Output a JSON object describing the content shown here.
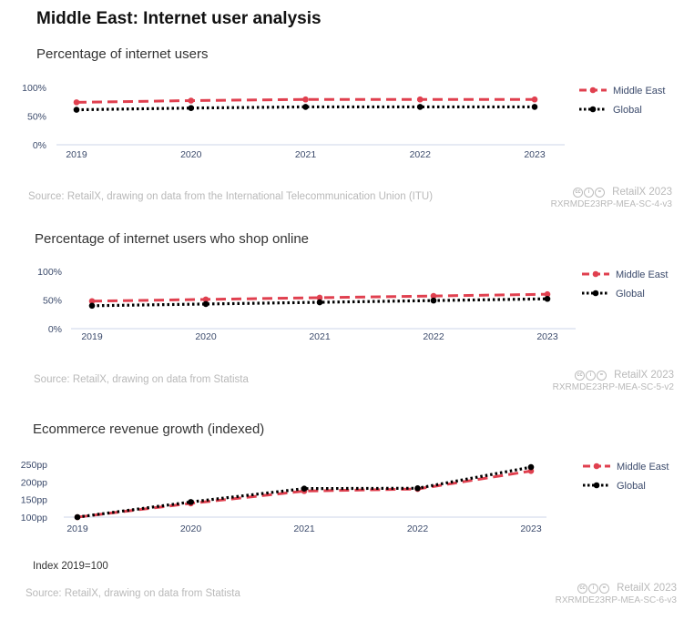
{
  "page": {
    "title": "Middle East: Internet user analysis"
  },
  "charts": [
    {
      "heading": "Percentage of internet users",
      "source": "Source: RetailX, drawing on data from the International Telecommunication Union (ITU)",
      "brand": "RetailX 2023",
      "code": "RXRMDE23RP-MEA-SC-4-v3",
      "note": ""
    },
    {
      "heading": "Percentage of internet users who shop online",
      "source": "Source: RetailX, drawing on data from Statista",
      "brand": "RetailX 2023",
      "code": "RXRMDE23RP-MEA-SC-5-v2",
      "note": ""
    },
    {
      "heading": "Ecommerce revenue growth (indexed)",
      "source": "Source: RetailX, drawing on data from Statista",
      "brand": "RetailX 2023",
      "code": "RXRMDE23RP-MEA-SC-6-v3",
      "note": "Index 2019=100"
    }
  ],
  "colors": {
    "middle_east": "#e0404f",
    "global": "#000000",
    "axis": "#dde3f0",
    "tick": "#3b4a6b"
  },
  "chart_data": [
    {
      "type": "line",
      "title": "Percentage of internet users",
      "categories": [
        "2019",
        "2020",
        "2021",
        "2022",
        "2023"
      ],
      "series": [
        {
          "name": "Middle East",
          "style": "dashed",
          "values": [
            74,
            77,
            79,
            79,
            79
          ]
        },
        {
          "name": "Global",
          "style": "dotted",
          "values": [
            61,
            64,
            66,
            66,
            66
          ]
        }
      ],
      "ylim": [
        0,
        100
      ],
      "yticks": [
        0,
        50,
        100
      ],
      "ytick_labels": [
        "0%",
        "50%",
        "100%"
      ],
      "legend": "right"
    },
    {
      "type": "line",
      "title": "Percentage of internet users who shop online",
      "categories": [
        "2019",
        "2020",
        "2021",
        "2022",
        "2023"
      ],
      "series": [
        {
          "name": "Middle East",
          "style": "dashed",
          "values": [
            48,
            51,
            54,
            57,
            60
          ]
        },
        {
          "name": "Global",
          "style": "dotted",
          "values": [
            40,
            43,
            46,
            49,
            52
          ]
        }
      ],
      "ylim": [
        0,
        100
      ],
      "yticks": [
        0,
        50,
        100
      ],
      "ytick_labels": [
        "0%",
        "50%",
        "100%"
      ],
      "legend": "right"
    },
    {
      "type": "line",
      "title": "Ecommerce revenue growth (indexed)",
      "categories": [
        "2019",
        "2020",
        "2021",
        "2022",
        "2023"
      ],
      "series": [
        {
          "name": "Middle East",
          "style": "dashed",
          "values": [
            100,
            139,
            174,
            180,
            231
          ]
        },
        {
          "name": "Global",
          "style": "dotted",
          "values": [
            100,
            143,
            181,
            182,
            242
          ]
        }
      ],
      "ylim": [
        100,
        250
      ],
      "yticks": [
        100,
        150,
        200,
        250
      ],
      "ytick_labels": [
        "100pp",
        "150pp",
        "200pp",
        "250pp"
      ],
      "legend": "right"
    }
  ]
}
